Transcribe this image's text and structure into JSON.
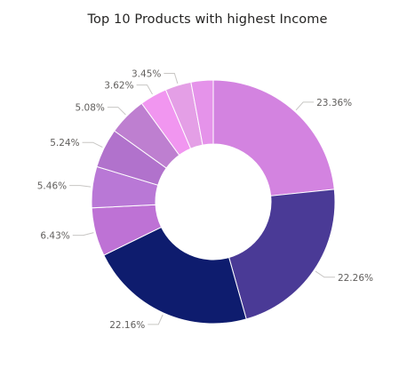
{
  "chart_data": {
    "type": "pie",
    "title": "Top 10 Products with highest Income",
    "values": [
      23.36,
      22.26,
      22.16,
      6.43,
      5.46,
      5.24,
      5.08,
      3.62,
      3.45,
      2.94
    ],
    "labels": [
      "23.36%",
      "22.26%",
      "22.16%",
      "6.43%",
      "5.46%",
      "5.24%",
      "5.08%",
      "3.62%",
      "3.45%",
      ""
    ],
    "colors": [
      "#D383E0",
      "#4A3A96",
      "#0E1C6E",
      "#BE72D5",
      "#B978D6",
      "#B172CC",
      "#BE7FD0",
      "#F196F0",
      "#E49FE6",
      "#E593EA"
    ],
    "donut": true,
    "legend": "none"
  }
}
